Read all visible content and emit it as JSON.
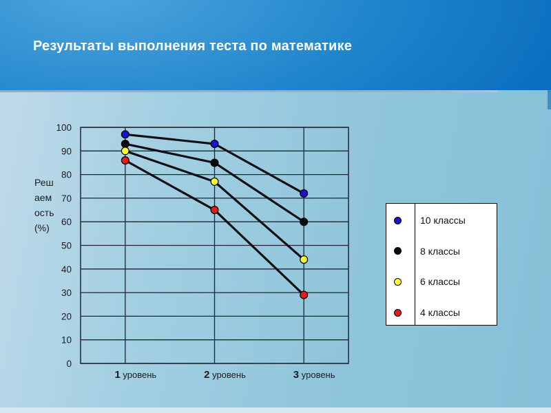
{
  "slide": {
    "title": "Результаты выполнения теста по математике"
  },
  "colors": {
    "header_blue": "#0b6fc0",
    "header_blue_light": "#4fa6dd",
    "body_bg": "#9bcbdf",
    "bottom_strip": "#d6e8f1",
    "header_shadow": "#9fadc6",
    "right_tab": "#3d8fc6",
    "grid": "#23232e",
    "series_line": "#101014",
    "axis_text": "#1c1c1c",
    "legend_bg": "#ffffff",
    "legend_border": "#000000"
  },
  "chart_data": {
    "type": "line",
    "title": "",
    "xlabel": "",
    "ylabel": "Решаемость (%)",
    "ylabel_display": "Реш\nаем\nость\n(%)",
    "categories": [
      "1 уровень",
      "2 уровень",
      "3 уровень"
    ],
    "series": [
      {
        "name": "10 классы",
        "color": "#1414d2",
        "values": [
          97,
          93,
          72
        ]
      },
      {
        "name": "8 классы",
        "color": "#0a0a0a",
        "values": [
          93,
          85,
          60
        ]
      },
      {
        "name": "6 классы",
        "color": "#fcfc30",
        "values": [
          90,
          77,
          44
        ]
      },
      {
        "name": "4 классы",
        "color": "#e51c1c",
        "values": [
          86,
          65,
          29
        ]
      }
    ],
    "ylim": [
      0,
      100
    ],
    "y_tick_step": 10,
    "y_tick_labels": [
      "100",
      "90",
      "80",
      "70",
      "60",
      "50",
      "40",
      "30",
      "20",
      "10",
      "0"
    ],
    "grid": true,
    "legend_position": "right",
    "marker": "circle"
  }
}
